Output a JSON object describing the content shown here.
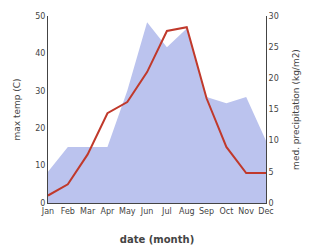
{
  "chart_data": {
    "type": "line",
    "xlabel": "date (month)",
    "ylabel": "max temp (C)",
    "y2label": "med. precipitation (kg/m2)",
    "categories": [
      "Jan",
      "Feb",
      "Mar",
      "Apr",
      "May",
      "Jun",
      "Jul",
      "Aug",
      "Sep",
      "Oct",
      "Nov",
      "Dec"
    ],
    "series": [
      {
        "type": "area",
        "axis": "y2",
        "color": "#bbc3ee",
        "values": [
          5,
          9,
          9,
          9,
          18,
          29,
          25,
          28,
          17,
          16,
          17,
          10
        ]
      },
      {
        "type": "line",
        "color": "#c0392b",
        "values": [
          2,
          5,
          13,
          24,
          27,
          35,
          46,
          47,
          28,
          15,
          8,
          8
        ]
      }
    ],
    "ylim": [
      0,
      50
    ],
    "yticks": [
      0,
      10,
      20,
      30,
      40,
      50
    ],
    "y2lim": [
      0,
      30
    ],
    "y2ticks": [
      0,
      5,
      10,
      15,
      20,
      25,
      30
    ],
    "grid": false
  }
}
